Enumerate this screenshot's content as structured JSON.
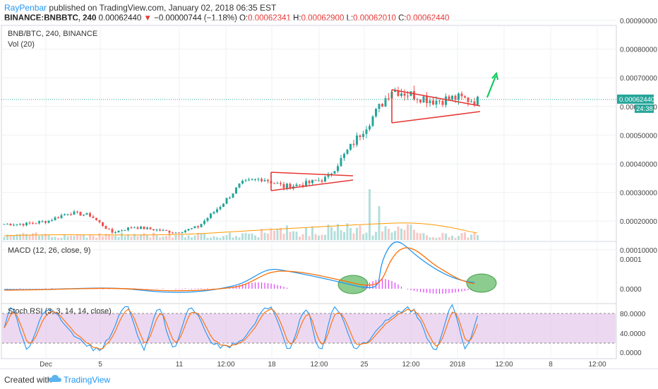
{
  "header": {
    "author": "RayPenbar",
    "published_text": "published on TradingView.com, January 02, 2018 06:35 EST",
    "symbol": "BINANCE:BNBBTC, 240",
    "last": "0.00062440",
    "arrow": "▼",
    "change": "−0.00000744 (−1.18%)",
    "o_label": "O:",
    "o_value": "0.00062341",
    "h_label": "H:",
    "h_value": "0.00062900",
    "l_label": "L:",
    "l_value": "0.00062010",
    "c_label": "C:",
    "c_value": "0.00062440"
  },
  "main_pane": {
    "title": "BNB/BTC, 240, BINANCE",
    "volume_label": "Vol (20)",
    "price_ticks": [
      "0.00090000",
      "0.00080000",
      "0.00070000",
      "0.00060000",
      "0.00050000",
      "0.00040000",
      "0.00030000",
      "0.00020000",
      "0.00010000"
    ],
    "last_price_badge": "0.00062440",
    "countdown_badge": "24:38"
  },
  "macd_pane": {
    "title": "MACD (12, 26, close, 9)",
    "ticks": [
      "0.0001",
      "0.0000"
    ]
  },
  "stoch_pane": {
    "title": "Stoch RSI (3, 3, 14, 14, close)",
    "ticks": [
      "80.0000",
      "40.0000",
      "0.0000"
    ]
  },
  "time_axis": [
    "Dec",
    "5",
    "11",
    "12:00",
    "18",
    "12:00",
    "25",
    "12:00",
    "2018",
    "12:00",
    "8",
    "12:00"
  ],
  "footer": {
    "created_with": "Created with",
    "brand": "TradingView"
  },
  "colors": {
    "up": "#26a69a",
    "down": "#ef5350",
    "triangle": "#e53935",
    "arrow": "#00c853",
    "macd": "#2196f3",
    "signal": "#ff6d00",
    "histogram": "#e040fb",
    "stoch_k": "#2196f3",
    "stoch_d": "#ff6d00",
    "stoch_band": "#e1bee7",
    "price_line": "#26a69a",
    "highlight": "#66bb6a"
  },
  "chart_data": [
    {
      "type": "candlestick",
      "title": "BNB/BTC, 240, BINANCE",
      "ylabel": "",
      "ylim": [
        0.0001,
        0.0009
      ],
      "x": [
        "Dec",
        "5",
        "11",
        "12:00",
        "18",
        "12:00",
        "25",
        "12:00",
        "2018",
        "12:00",
        "8",
        "12:00"
      ],
      "close_path": [
        0.00019,
        0.00019,
        0.0002,
        0.00023,
        0.00022,
        0.00016,
        0.00018,
        0.00017,
        0.00016,
        0.00018,
        0.00025,
        0.00033,
        0.00035,
        0.00032,
        0.00033,
        0.00035,
        0.00045,
        0.00055,
        0.00066,
        0.00064,
        0.00062,
        0.00063,
        0.00062
      ]
    },
    {
      "type": "line",
      "title": "MACD (12, 26, close, 9)",
      "ylim": [
        -3e-05,
        0.00015
      ],
      "series": []
    },
    {
      "type": "line",
      "title": "Stoch RSI (3, 3, 14, 14, close)",
      "ylim": [
        0,
        100
      ],
      "series": []
    }
  ]
}
